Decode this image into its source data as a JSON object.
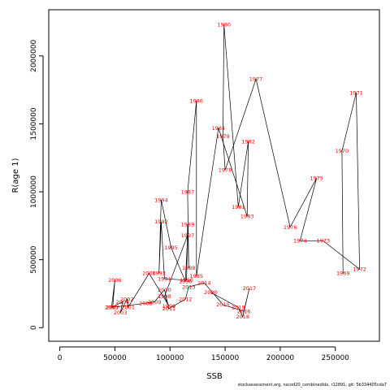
{
  "chart_data": {
    "type": "line",
    "xlabel": "SSB",
    "ylabel": "R(age 1)",
    "xlim": [
      -10000,
      290000
    ],
    "ylim": [
      -100000,
      2340000
    ],
    "xticks": [
      0,
      50000,
      100000,
      150000,
      200000,
      250000
    ],
    "yticks": [
      0,
      500000,
      1000000,
      1500000,
      2000000
    ],
    "grid": false,
    "label_color": "#ff0000",
    "line_color": "#000000",
    "points": [
      {
        "year": "1969",
        "x": 257000,
        "y": 400000
      },
      {
        "year": "1970",
        "x": 256000,
        "y": 1300000
      },
      {
        "year": "1971",
        "x": 269000,
        "y": 1730000
      },
      {
        "year": "1972",
        "x": 272000,
        "y": 430000
      },
      {
        "year": "1973",
        "x": 239000,
        "y": 640000
      },
      {
        "year": "1974",
        "x": 218000,
        "y": 640000
      },
      {
        "year": "1975",
        "x": 233000,
        "y": 1100000
      },
      {
        "year": "1976",
        "x": 209000,
        "y": 740000
      },
      {
        "year": "1977",
        "x": 178000,
        "y": 1830000
      },
      {
        "year": "1978",
        "x": 150000,
        "y": 1160000
      },
      {
        "year": "1979",
        "x": 148000,
        "y": 1410000
      },
      {
        "year": "1980",
        "x": 149000,
        "y": 2230000
      },
      {
        "year": "1981",
        "x": 162000,
        "y": 890000
      },
      {
        "year": "1982",
        "x": 171000,
        "y": 1370000
      },
      {
        "year": "1983",
        "x": 170000,
        "y": 820000
      },
      {
        "year": "1984",
        "x": 144000,
        "y": 1470000
      },
      {
        "year": "1985",
        "x": 124000,
        "y": 380000
      },
      {
        "year": "1986",
        "x": 124000,
        "y": 1670000
      },
      {
        "year": "1987",
        "x": 116000,
        "y": 1000000
      },
      {
        "year": "1988",
        "x": 117000,
        "y": 440000
      },
      {
        "year": "1989",
        "x": 116000,
        "y": 760000
      },
      {
        "year": "1990",
        "x": 115000,
        "y": 350000
      },
      {
        "year": "1991",
        "x": 95000,
        "y": 360000
      },
      {
        "year": "1992",
        "x": 92000,
        "y": 780000
      },
      {
        "year": "1993",
        "x": 90000,
        "y": 400000
      },
      {
        "year": "1994",
        "x": 92000,
        "y": 940000
      },
      {
        "year": "1995",
        "x": 101000,
        "y": 590000
      },
      {
        "year": "1996",
        "x": 114000,
        "y": 340000
      },
      {
        "year": "1997",
        "x": 116000,
        "y": 680000
      },
      {
        "year": "1998",
        "x": 95000,
        "y": 230000
      },
      {
        "year": "1999",
        "x": 99000,
        "y": 160000
      },
      {
        "year": "2000",
        "x": 81000,
        "y": 400000
      },
      {
        "year": "2001",
        "x": 62000,
        "y": 150000
      },
      {
        "year": "2002",
        "x": 61000,
        "y": 210000
      },
      {
        "year": "2003",
        "x": 55000,
        "y": 110000
      },
      {
        "year": "2004",
        "x": 57000,
        "y": 190000
      },
      {
        "year": "2005",
        "x": 47000,
        "y": 150000
      },
      {
        "year": "2006",
        "x": 50000,
        "y": 350000
      },
      {
        "year": "2007",
        "x": 48000,
        "y": 150000
      },
      {
        "year": "2008",
        "x": 78000,
        "y": 180000
      },
      {
        "year": "2009",
        "x": 86000,
        "y": 190000
      },
      {
        "year": "2010",
        "x": 95000,
        "y": 280000
      },
      {
        "year": "2011",
        "x": 99000,
        "y": 140000
      },
      {
        "year": "2012",
        "x": 114000,
        "y": 210000
      },
      {
        "year": "2013",
        "x": 117000,
        "y": 300000
      },
      {
        "year": "2014",
        "x": 131000,
        "y": 330000
      },
      {
        "year": "2015",
        "x": 148000,
        "y": 170000
      },
      {
        "year": "2016",
        "x": 167000,
        "y": 120000
      },
      {
        "year": "2017",
        "x": 172000,
        "y": 290000
      },
      {
        "year": "2018",
        "x": 166000,
        "y": 80000
      },
      {
        "year": "2019",
        "x": 162000,
        "y": 150000
      },
      {
        "year": "2020",
        "x": 137000,
        "y": 260000
      }
    ]
  },
  "footer": "stockassessment.org, nscod20_combinedidx, r12891, git: 5b334405cda7"
}
